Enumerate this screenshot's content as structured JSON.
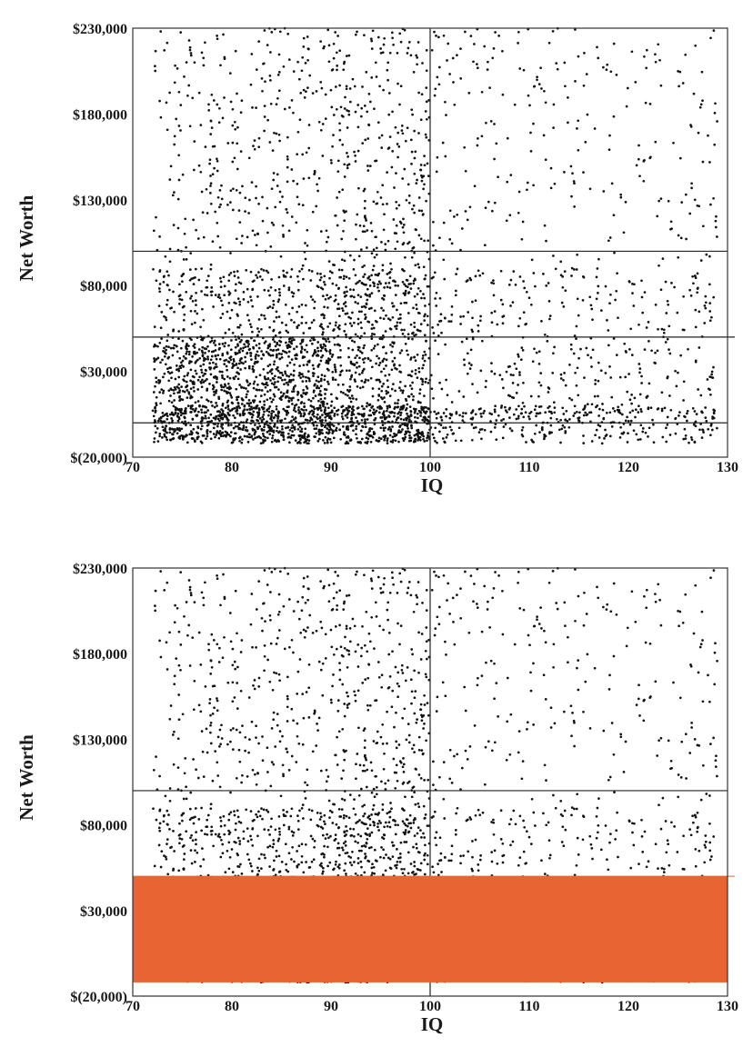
{
  "chart_data": [
    {
      "type": "scatter",
      "xlabel": "IQ",
      "ylabel": "Net Worth",
      "xlim": [
        70,
        130
      ],
      "ylim": [
        -20000,
        230000
      ],
      "x_ticks": [
        "70",
        "80",
        "90",
        "100",
        "110",
        "120",
        "130"
      ],
      "y_ticks": [
        "$(20,000)",
        "$30,000",
        "$80,000",
        "$130,000",
        "$180,000",
        "$230,000"
      ],
      "grid": false,
      "reference_lines": [
        {
          "axis": "x",
          "value": 100,
          "color": "#222222"
        },
        {
          "axis": "y",
          "value": 100000,
          "color": "#222222"
        },
        {
          "axis": "y",
          "value": 0,
          "color": "#222222"
        },
        {
          "axis": "y",
          "value": 50000,
          "color": "#e02020"
        }
      ],
      "point_color": "#111111",
      "overlay": null
    },
    {
      "type": "scatter",
      "xlabel": "IQ",
      "ylabel": "Net Worth",
      "xlim": [
        70,
        130
      ],
      "ylim": [
        -20000,
        230000
      ],
      "x_ticks": [
        "70",
        "80",
        "90",
        "100",
        "110",
        "120",
        "130"
      ],
      "y_ticks": [
        "$(20,000)",
        "$30,000",
        "$80,000",
        "$130,000",
        "$180,000",
        "$230,000"
      ],
      "grid": false,
      "reference_lines": [
        {
          "axis": "x",
          "value": 100,
          "color": "#222222"
        },
        {
          "axis": "y",
          "value": 100000,
          "color": "#222222"
        }
      ],
      "point_color": "#111111",
      "overlay": {
        "kind": "band",
        "y_from": -12000,
        "y_to": 50000,
        "color": "#e86433"
      }
    }
  ]
}
